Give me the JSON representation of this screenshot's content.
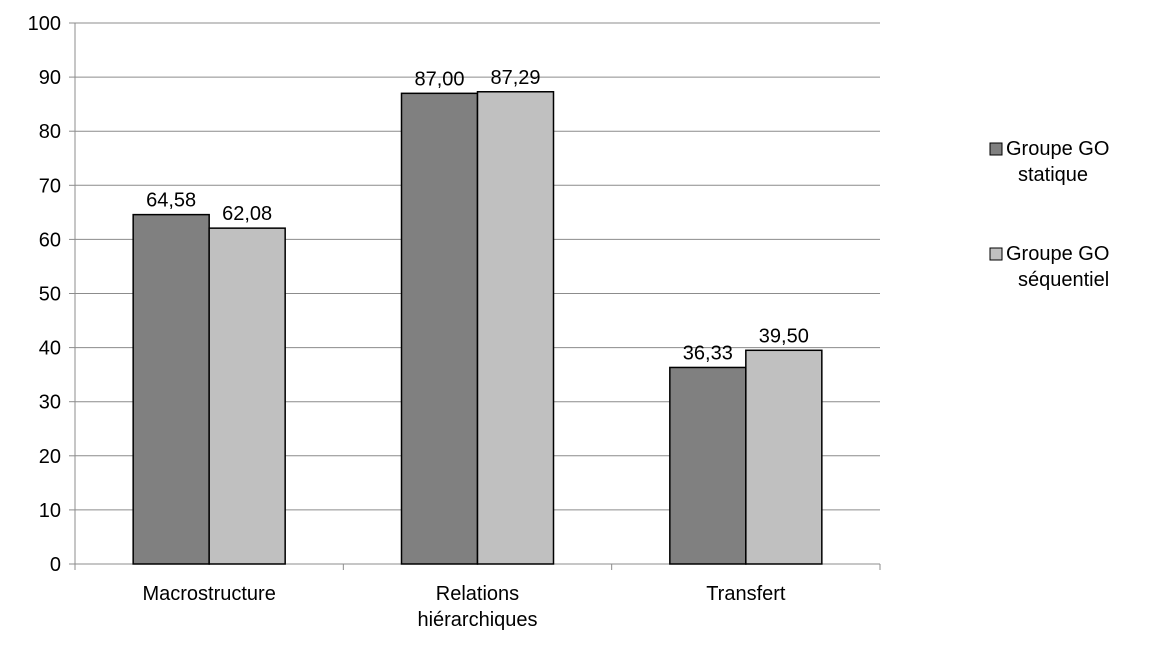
{
  "chart_data": {
    "type": "bar",
    "title": "",
    "xlabel": "",
    "ylabel": "",
    "categories": [
      [
        "Macrostructure"
      ],
      [
        "Relations",
        "hiérarchiques"
      ],
      [
        "Transfert"
      ]
    ],
    "series": [
      {
        "name": "Groupe GO statique",
        "legend_lines": [
          "Groupe GO",
          "statique"
        ],
        "color": "#808080",
        "values": [
          64.58,
          87.0,
          36.33
        ],
        "value_labels": [
          "64,58",
          "87,00",
          "36,33"
        ]
      },
      {
        "name": "Groupe GO séquentiel",
        "legend_lines": [
          "Groupe GO",
          "séquentiel"
        ],
        "color": "#c0c0c0",
        "values": [
          62.08,
          87.29,
          39.5
        ],
        "value_labels": [
          "62,08",
          "87,29",
          "39,50"
        ]
      }
    ],
    "ylim": [
      0,
      100
    ],
    "yticks": [
      0,
      10,
      20,
      30,
      40,
      50,
      60,
      70,
      80,
      90,
      100
    ],
    "grid": true,
    "legend_position": "right"
  }
}
